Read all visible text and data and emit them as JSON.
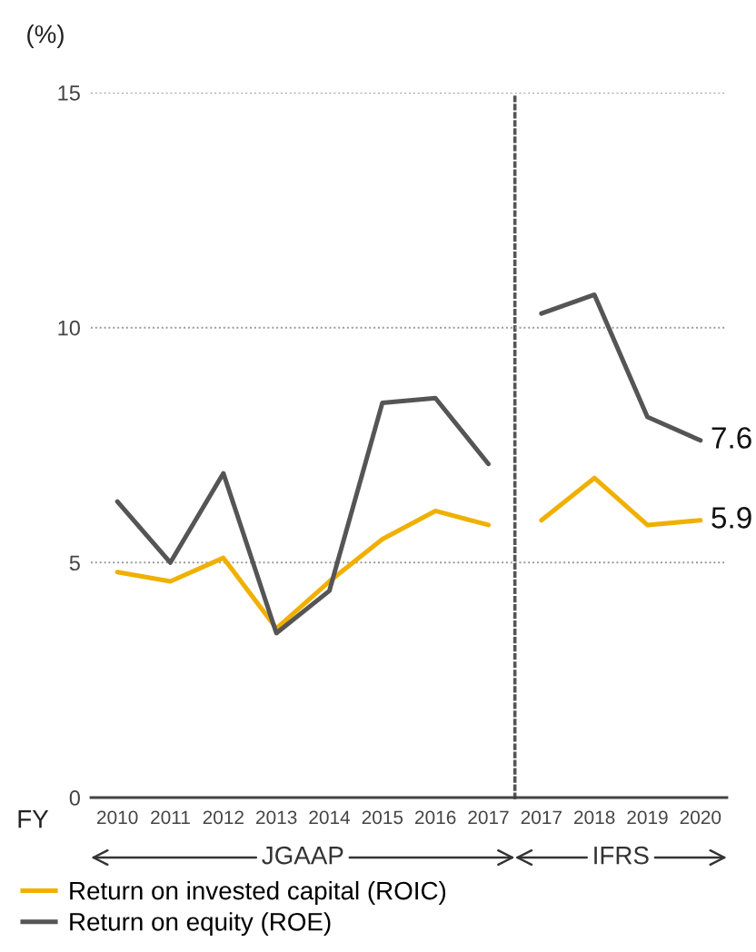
{
  "chart_data": [
    {
      "type": "line",
      "ylabel": "(%)",
      "xlabel": "FY",
      "categories": [
        "2010",
        "2011",
        "2012",
        "2013",
        "2014",
        "2015",
        "2016",
        "2017"
      ],
      "series": [
        {
          "name": "Return on invested capital (ROIC)",
          "color": "#f0b000",
          "values": [
            4.8,
            4.6,
            5.1,
            3.6,
            4.6,
            5.5,
            6.1,
            5.8
          ]
        },
        {
          "name": "Return on equity (ROE)",
          "color": "#555555",
          "values": [
            6.3,
            5.0,
            6.9,
            3.5,
            4.4,
            8.4,
            8.5,
            7.1
          ]
        }
      ],
      "ylim": [
        0,
        15
      ],
      "yticks": [
        0,
        5,
        10,
        15
      ],
      "grid": "y",
      "legend": "bottom",
      "marker": "none",
      "line_style": "solid",
      "annotations": [
        "JGAAP"
      ]
    },
    {
      "type": "line",
      "categories": [
        "2017",
        "2018",
        "2019",
        "2020"
      ],
      "series": [
        {
          "color": "#f0b000",
          "values": [
            5.9,
            6.8,
            5.8,
            5.9
          ],
          "value_labels": [
            null,
            null,
            null,
            "5.9"
          ]
        },
        {
          "color": "#555555",
          "values": [
            10.3,
            10.7,
            8.1,
            7.6
          ],
          "value_labels": [
            null,
            null,
            null,
            "7.6"
          ]
        }
      ],
      "ylim": [
        0,
        15
      ],
      "yticks": [
        0,
        5,
        10,
        15
      ],
      "tick_labels": "x",
      "grid": "y",
      "marker": "none",
      "line_style": "solid",
      "annotations": [
        "IFRS"
      ]
    }
  ]
}
